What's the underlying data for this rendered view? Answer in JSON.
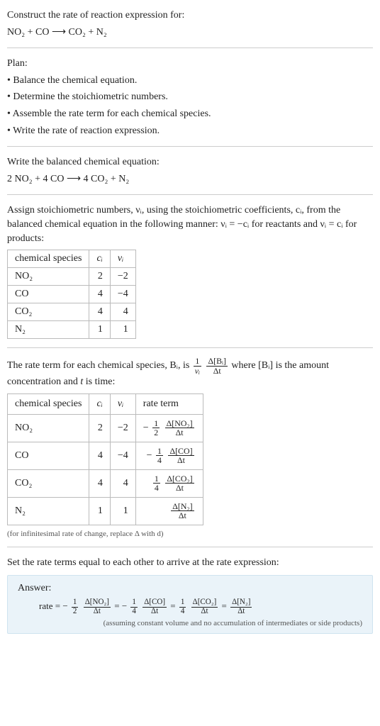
{
  "header": {
    "prompt": "Construct the rate of reaction expression for:",
    "equation_unbalanced": "NO₂ + CO ⟶ CO₂ + N₂"
  },
  "plan": {
    "title": "Plan:",
    "items": [
      "Balance the chemical equation.",
      "Determine the stoichiometric numbers.",
      "Assemble the rate term for each chemical species.",
      "Write the rate of reaction expression."
    ]
  },
  "balanced": {
    "intro": "Write the balanced chemical equation:",
    "equation": "2 NO₂ + 4 CO ⟶ 4 CO₂ + N₂"
  },
  "stoich_text_1": "Assign stoichiometric numbers, νᵢ, using the stoichiometric coefficients, cᵢ, from the balanced chemical equation in the following manner: νᵢ = −cᵢ for reactants and νᵢ = cᵢ for products:",
  "stoich_table": {
    "headers": [
      "chemical species",
      "cᵢ",
      "νᵢ"
    ],
    "rows": [
      [
        "NO₂",
        "2",
        "−2"
      ],
      [
        "CO",
        "4",
        "−4"
      ],
      [
        "CO₂",
        "4",
        "4"
      ],
      [
        "N₂",
        "1",
        "1"
      ]
    ]
  },
  "rate_text_intro_a": "The rate term for each chemical species, Bᵢ, is ",
  "rate_text_intro_b": " where [Bᵢ] is the amount concentration and ",
  "rate_text_intro_c": " is time:",
  "rate_frac_num": "1",
  "rate_frac_den": "νᵢ",
  "rate_frac2_num": "Δ[Bᵢ]",
  "rate_frac2_den": "Δt",
  "time_sym": "t",
  "rate_table": {
    "headers": [
      "chemical species",
      "cᵢ",
      "νᵢ",
      "rate term"
    ],
    "rows": [
      {
        "sp": "NO₂",
        "c": "2",
        "nu": "−2",
        "sign": "− ",
        "f1n": "1",
        "f1d": "2",
        "f2n": "Δ[NO₂]",
        "f2d": "Δt"
      },
      {
        "sp": "CO",
        "c": "4",
        "nu": "−4",
        "sign": "− ",
        "f1n": "1",
        "f1d": "4",
        "f2n": "Δ[CO]",
        "f2d": "Δt"
      },
      {
        "sp": "CO₂",
        "c": "4",
        "nu": "4",
        "sign": "",
        "f1n": "1",
        "f1d": "4",
        "f2n": "Δ[CO₂]",
        "f2d": "Δt"
      },
      {
        "sp": "N₂",
        "c": "1",
        "nu": "1",
        "sign": "",
        "f1n": "",
        "f1d": "",
        "f2n": "Δ[N₂]",
        "f2d": "Δt"
      }
    ]
  },
  "infinitesimal_note": "(for infinitesimal rate of change, replace Δ with d)",
  "final_intro": "Set the rate terms equal to each other to arrive at the rate expression:",
  "answer": {
    "label": "Answer:",
    "rate_prefix": "rate = ",
    "terms": [
      {
        "sign": "− ",
        "f1n": "1",
        "f1d": "2",
        "f2n": "Δ[NO₂]",
        "f2d": "Δt"
      },
      {
        "sign": "− ",
        "f1n": "1",
        "f1d": "4",
        "f2n": "Δ[CO]",
        "f2d": "Δt"
      },
      {
        "sign": "",
        "f1n": "1",
        "f1d": "4",
        "f2n": "Δ[CO₂]",
        "f2d": "Δt"
      },
      {
        "sign": "",
        "f1n": "",
        "f1d": "",
        "f2n": "Δ[N₂]",
        "f2d": "Δt"
      }
    ],
    "eq": " = ",
    "assumption": "(assuming constant volume and no accumulation of intermediates or side products)"
  }
}
